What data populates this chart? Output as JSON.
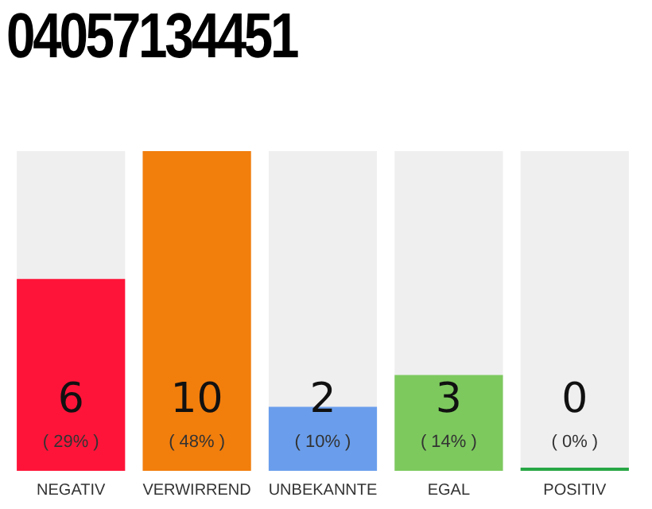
{
  "chart_data": {
    "type": "bar",
    "title": "04057134451",
    "categories": [
      "NEGATIV",
      "VERWIRREND",
      "UNBEKANNTE",
      "EGAL",
      "POSITIV"
    ],
    "values": [
      6,
      10,
      2,
      3,
      0
    ],
    "colors": [
      "#ff1439",
      "#f27e0c",
      "#6a9eec",
      "#7dc95e",
      "#28a745"
    ],
    "value_labels": [
      "6",
      "10",
      "2",
      "3",
      "0"
    ],
    "annotations": [
      "( 29% )",
      "( 48% )",
      "( 10% )",
      "( 14% )",
      "( 0% )"
    ],
    "tick_labels": "x",
    "grid": false,
    "legend": false
  }
}
